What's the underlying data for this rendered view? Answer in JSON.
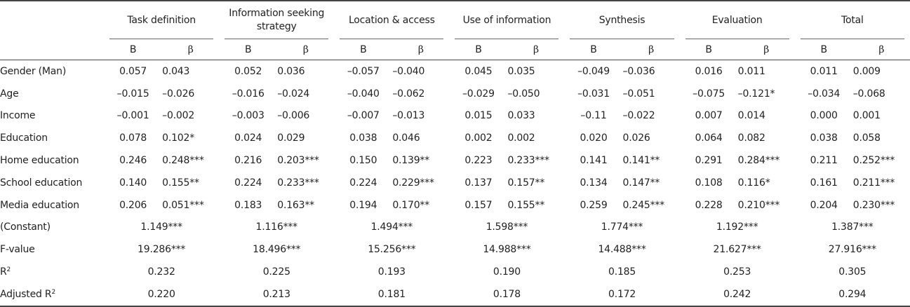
{
  "groups": [
    "Task definition",
    "Information seeking\nstrategy",
    "Location & access",
    "Use of information",
    "Synthesis",
    "Evaluation",
    "Total"
  ],
  "sub": {
    "b": "B",
    "beta": "β"
  },
  "rows": [
    {
      "label": "Gender (Man)",
      "values": [
        "0.057",
        "0.043",
        "0.052",
        "0.036",
        "–0.057",
        "–0.040",
        "0.045",
        "0.035",
        "–0.049",
        "–0.036",
        "0.016",
        "0.011",
        "0.011",
        "0.009"
      ]
    },
    {
      "label": "Age",
      "values": [
        "–0.015",
        "–0.026",
        "–0.016",
        "–0.024",
        "–0.040",
        "–0.062",
        "–0.029",
        "–0.050",
        "–0.031",
        "–0.051",
        "–0.075",
        "–0.121*",
        "–0.034",
        "–0.068"
      ]
    },
    {
      "label": "Income",
      "values": [
        "–0.001",
        "–0.002",
        "–0.003",
        "–0.006",
        "–0.007",
        "–0.013",
        "0.015",
        "0.033",
        "–0.11",
        "–0.022",
        "0.007",
        "0.014",
        "0.000",
        "0.001"
      ]
    },
    {
      "label": "Education",
      "values": [
        "0.078",
        "0.102*",
        "0.024",
        "0.029",
        "0.038",
        "0.046",
        "0.002",
        "0.002",
        "0.020",
        "0.026",
        "0.064",
        "0.082",
        "0.038",
        "0.058"
      ]
    },
    {
      "label": "Home education",
      "values": [
        "0.246",
        "0.248***",
        "0.216",
        "0.203***",
        "0.150",
        "0.139**",
        "0.223",
        "0.233***",
        "0.141",
        "0.141**",
        "0.291",
        "0.284***",
        "0.211",
        "0.252***"
      ]
    },
    {
      "label": "School education",
      "values": [
        "0.140",
        "0.155**",
        "0.224",
        "0.233***",
        "0.224",
        "0.229***",
        "0.137",
        "0.157**",
        "0.134",
        "0.147**",
        "0.108",
        "0.116*",
        "0.161",
        "0.211***"
      ]
    },
    {
      "label": "Media education",
      "values": [
        "0.206",
        "0.051***",
        "0.183",
        "0.163**",
        "0.194",
        "0.170**",
        "0.157",
        "0.155**",
        "0.259",
        "0.245***",
        "0.228",
        "0.210***",
        "0.204",
        "0.230***"
      ]
    }
  ],
  "summary": [
    {
      "label": "(Constant)",
      "sup": "",
      "values": [
        "1.149***",
        "1.116***",
        "1.494***",
        "1.598***",
        "1.774***",
        "1.192***",
        "1.387***"
      ]
    },
    {
      "label": "F-value",
      "sup": "",
      "values": [
        "19.286***",
        "18.496***",
        "15.256***",
        "14.988***",
        "14.488***",
        "21.627***",
        "27.916***"
      ]
    },
    {
      "label": "R",
      "sup": "2",
      "values": [
        "0.232",
        "0.225",
        "0.193",
        "0.190",
        "0.185",
        "0.253",
        "0.305"
      ]
    },
    {
      "label": "Adjusted R",
      "sup": "2",
      "values": [
        "0.220",
        "0.213",
        "0.181",
        "0.178",
        "0.172",
        "0.242",
        "0.294"
      ]
    }
  ]
}
